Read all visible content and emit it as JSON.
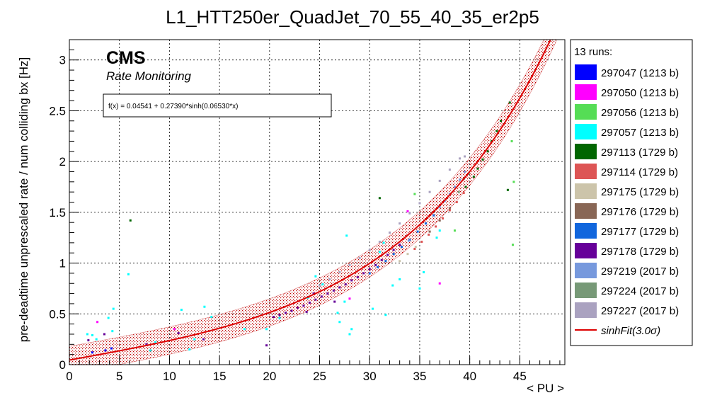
{
  "chart_data": {
    "type": "scatter",
    "title": "L1_HTT250er_QuadJet_70_55_40_35_er2p5",
    "xlabel": "< PU >",
    "ylabel": "pre-deadtime unprescaled rate / num colliding bx [Hz]",
    "xlim": [
      0,
      49.5
    ],
    "ylim": [
      0,
      3.2
    ],
    "x_ticks": [
      "0",
      "5",
      "10",
      "15",
      "20",
      "25",
      "30",
      "35",
      "40",
      "45"
    ],
    "y_ticks": [
      "0",
      "0.5",
      "1",
      "1.5",
      "2",
      "2.5",
      "3"
    ],
    "grid": true,
    "experiment_label": "CMS",
    "subtitle": "Rate Monitoring",
    "fit_label": "f(x) = 0.04541 + 0.27390*sinh(0.06530*x)",
    "fit": {
      "a": 0.04541,
      "b": 0.2739,
      "c": 0.0653,
      "band": 0.135
    },
    "legend_title": "13 runs:",
    "legend_position": "right",
    "series": [
      {
        "name": "297047 (1213 b)",
        "color": "#0000ff",
        "points": [
          [
            2.3,
            0.12
          ],
          [
            3.6,
            0.14
          ],
          [
            4.2,
            0.16
          ]
        ]
      },
      {
        "name": "297050 (1213 b)",
        "color": "#ff00ff",
        "points": [
          [
            2.8,
            0.42
          ],
          [
            10.5,
            0.35
          ],
          [
            28.0,
            0.65
          ],
          [
            33.8,
            1.51
          ],
          [
            37.0,
            0.8
          ]
        ]
      },
      {
        "name": "297056 (1213 b)",
        "color": "#55dd55",
        "points": [
          [
            44.2,
            2.2
          ],
          [
            44.4,
            1.8
          ],
          [
            44.3,
            1.18
          ],
          [
            34.5,
            1.68
          ],
          [
            38.5,
            1.32
          ]
        ]
      },
      {
        "name": "297057 (1213 b)",
        "color": "#00ffff",
        "points": [
          [
            1.8,
            0.3
          ],
          [
            2.3,
            0.29
          ],
          [
            2.7,
            0.25
          ],
          [
            3.9,
            0.46
          ],
          [
            4.4,
            0.55
          ],
          [
            4.3,
            0.33
          ],
          [
            5.9,
            0.89
          ],
          [
            8.1,
            0.14
          ],
          [
            8.6,
            0.22
          ],
          [
            11.2,
            0.54
          ],
          [
            12.0,
            0.15
          ],
          [
            12.5,
            0.25
          ],
          [
            13.5,
            0.57
          ],
          [
            14.2,
            0.47
          ],
          [
            17.5,
            0.35
          ],
          [
            19.7,
            0.35
          ],
          [
            21.0,
            0.46
          ],
          [
            23.8,
            0.66
          ],
          [
            24.6,
            0.87
          ],
          [
            25.3,
            0.79
          ],
          [
            26.8,
            0.51
          ],
          [
            27.0,
            0.42
          ],
          [
            27.5,
            0.62
          ],
          [
            27.7,
            1.27
          ],
          [
            28.0,
            0.3
          ],
          [
            28.2,
            0.35
          ],
          [
            30.3,
            0.55
          ],
          [
            31.0,
            1.11
          ],
          [
            31.4,
            1.2
          ],
          [
            31.6,
            0.49
          ],
          [
            32.3,
            0.78
          ],
          [
            33.0,
            0.84
          ],
          [
            35.4,
            0.91
          ],
          [
            36.7,
            1.25
          ],
          [
            37.0,
            1.32
          ],
          [
            35.0,
            0.75
          ]
        ]
      },
      {
        "name": "297113 (1729 b)",
        "color": "#006600",
        "points": [
          [
            6.1,
            1.42
          ],
          [
            31.0,
            1.64
          ],
          [
            43.8,
            1.72
          ],
          [
            39.6,
            1.75
          ],
          [
            40.4,
            1.85
          ],
          [
            41.3,
            2.02
          ],
          [
            42.2,
            2.2
          ],
          [
            43.1,
            2.4
          ],
          [
            44.0,
            2.58
          ],
          [
            40.8,
            1.93
          ],
          [
            41.8,
            2.1
          ],
          [
            42.7,
            2.3
          ]
        ]
      },
      {
        "name": "297114 (1729 b)",
        "color": "#dd5555",
        "points": [
          [
            34.5,
            1.14
          ],
          [
            35.2,
            1.21
          ],
          [
            35.9,
            1.28
          ],
          [
            36.6,
            1.36
          ],
          [
            37.3,
            1.44
          ],
          [
            38.0,
            1.52
          ],
          [
            38.7,
            1.6
          ],
          [
            39.4,
            1.69
          ]
        ]
      },
      {
        "name": "297175 (1729 b)",
        "color": "#ccc4aa",
        "points": [
          [
            33.0,
            1.02
          ],
          [
            33.8,
            1.09
          ],
          [
            34.6,
            1.16
          ]
        ]
      },
      {
        "name": "297176 (1729 b)",
        "color": "#886655",
        "points": [
          [
            36.0,
            1.31
          ],
          [
            37.0,
            1.42
          ],
          [
            38.0,
            1.54
          ]
        ]
      },
      {
        "name": "297177 (1729 b)",
        "color": "#1166dd",
        "points": [
          [
            30.0,
            0.9
          ],
          [
            30.8,
            0.96
          ],
          [
            31.6,
            1.02
          ],
          [
            32.4,
            1.09
          ],
          [
            33.2,
            1.16
          ],
          [
            34.0,
            1.23
          ],
          [
            34.8,
            1.31
          ],
          [
            35.6,
            1.39
          ],
          [
            36.4,
            1.47
          ]
        ]
      },
      {
        "name": "297178 (1729 b)",
        "color": "#660099",
        "points": [
          [
            1.9,
            0.24
          ],
          [
            3.5,
            0.3
          ],
          [
            7.7,
            0.2
          ],
          [
            10.9,
            0.31
          ],
          [
            13.4,
            0.25
          ],
          [
            19.7,
            0.19
          ],
          [
            20.4,
            0.47
          ],
          [
            21.0,
            0.49
          ],
          [
            21.6,
            0.51
          ],
          [
            22.2,
            0.53
          ],
          [
            22.8,
            0.56
          ],
          [
            23.4,
            0.58
          ],
          [
            24.0,
            0.61
          ],
          [
            24.6,
            0.64
          ],
          [
            25.2,
            0.67
          ],
          [
            25.8,
            0.7
          ],
          [
            26.4,
            0.73
          ],
          [
            27.0,
            0.76
          ],
          [
            27.6,
            0.79
          ],
          [
            28.2,
            0.83
          ],
          [
            28.8,
            0.86
          ],
          [
            29.4,
            0.9
          ],
          [
            30.0,
            0.94
          ],
          [
            30.6,
            0.98
          ],
          [
            31.2,
            1.03
          ],
          [
            31.8,
            1.08
          ],
          [
            32.4,
            1.13
          ],
          [
            33.0,
            1.18
          ],
          [
            24.4,
            0.7
          ],
          [
            23.7,
            0.52
          ],
          [
            26.5,
            0.62
          ]
        ]
      },
      {
        "name": "297219 (2017 b)",
        "color": "#7799dd",
        "points": [
          [
            37.0,
            1.55
          ],
          [
            37.5,
            1.61
          ],
          [
            38.0,
            1.68
          ],
          [
            38.5,
            1.75
          ],
          [
            39.0,
            1.82
          ],
          [
            39.5,
            1.9
          ],
          [
            33.9,
            1.22
          ]
        ]
      },
      {
        "name": "297224 (2017 b)",
        "color": "#779977",
        "points": [
          [
            39.4,
            1.83
          ],
          [
            39.9,
            1.88
          ],
          [
            38.9,
            1.7
          ]
        ]
      },
      {
        "name": "297227 (2017 b)",
        "color": "#aaa2c0",
        "points": [
          [
            25.0,
            0.78
          ],
          [
            26.0,
            0.84
          ],
          [
            27.0,
            0.91
          ],
          [
            28.0,
            0.98
          ],
          [
            29.0,
            1.05
          ],
          [
            30.0,
            1.13
          ],
          [
            31.0,
            1.21
          ],
          [
            32.0,
            1.3
          ],
          [
            33.0,
            1.39
          ],
          [
            34.0,
            1.49
          ],
          [
            35.0,
            1.59
          ],
          [
            36.0,
            1.7
          ],
          [
            37.0,
            1.81
          ],
          [
            38.0,
            1.92
          ],
          [
            39.0,
            2.03
          ],
          [
            39.5,
            2.05
          ]
        ]
      }
    ],
    "fit_series": {
      "name": "sinhFit(3.0σ)",
      "color": "#dd0000"
    }
  }
}
